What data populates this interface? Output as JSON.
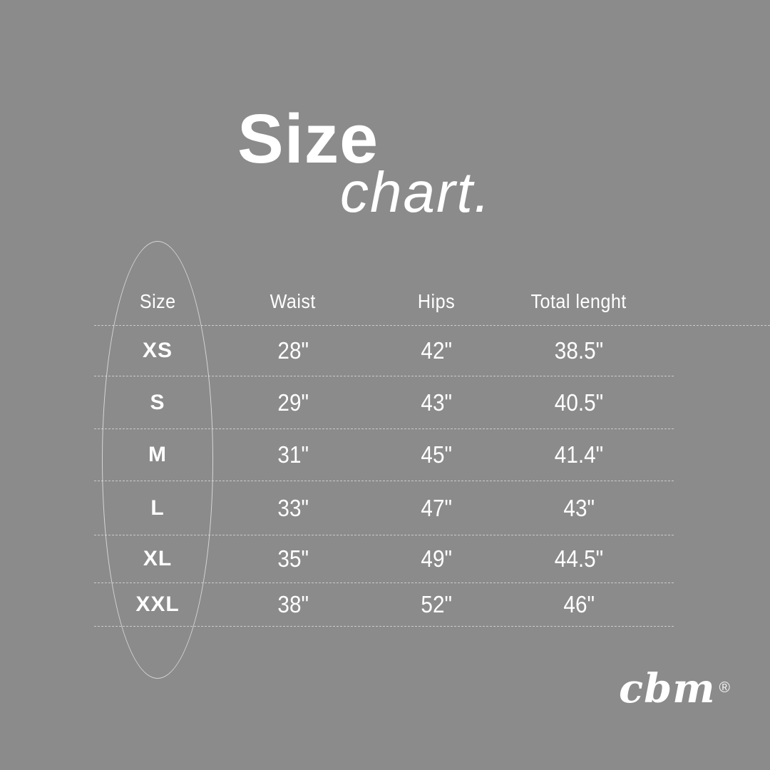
{
  "page": {
    "background": "#8b8b8b",
    "text_color": "#ffffff"
  },
  "title": {
    "main": "Size",
    "sub": "chart."
  },
  "size_table": {
    "headers": {
      "size": "Size",
      "waist": "Waist",
      "hips": "Hips",
      "total_length": "Total lenght"
    },
    "rows": [
      {
        "size": "XS",
        "waist": "28\"",
        "hips": "42\"",
        "total_length": "38.5\""
      },
      {
        "size": "S",
        "waist": "29\"",
        "hips": "43\"",
        "total_length": "40.5\""
      },
      {
        "size": "M",
        "waist": "31\"",
        "hips": "45\"",
        "total_length": "41.4\""
      },
      {
        "size": "L",
        "waist": "33\"",
        "hips": "47\"",
        "total_length": "43\""
      },
      {
        "size": "XL",
        "waist": "35\"",
        "hips": "49\"",
        "total_length": "44.5\""
      },
      {
        "size": "XXL",
        "waist": "38\"",
        "hips": "52\"",
        "total_length": "46\""
      }
    ]
  },
  "brand": {
    "name": "cbm",
    "registered_mark": "®"
  },
  "chart_data": {
    "type": "table",
    "title": "Size chart.",
    "columns": [
      "Size",
      "Waist",
      "Hips",
      "Total lenght"
    ],
    "rows": [
      [
        "XS",
        "28\"",
        "42\"",
        "38.5\""
      ],
      [
        "S",
        "29\"",
        "43\"",
        "40.5\""
      ],
      [
        "M",
        "31\"",
        "45\"",
        "41.4\""
      ],
      [
        "L",
        "33\"",
        "47\"",
        "43\""
      ],
      [
        "XL",
        "35\"",
        "49\"",
        "44.5\""
      ],
      [
        "XXL",
        "38\"",
        "52\"",
        "46\""
      ]
    ],
    "series": [
      {
        "name": "Waist (in)",
        "values": [
          28,
          29,
          31,
          33,
          35,
          38
        ]
      },
      {
        "name": "Hips (in)",
        "values": [
          42,
          43,
          45,
          47,
          49,
          52
        ]
      },
      {
        "name": "Total lenght (in)",
        "values": [
          38.5,
          40.5,
          41.4,
          43,
          44.5,
          46
        ]
      }
    ],
    "categories": [
      "XS",
      "S",
      "M",
      "L",
      "XL",
      "XXL"
    ]
  }
}
